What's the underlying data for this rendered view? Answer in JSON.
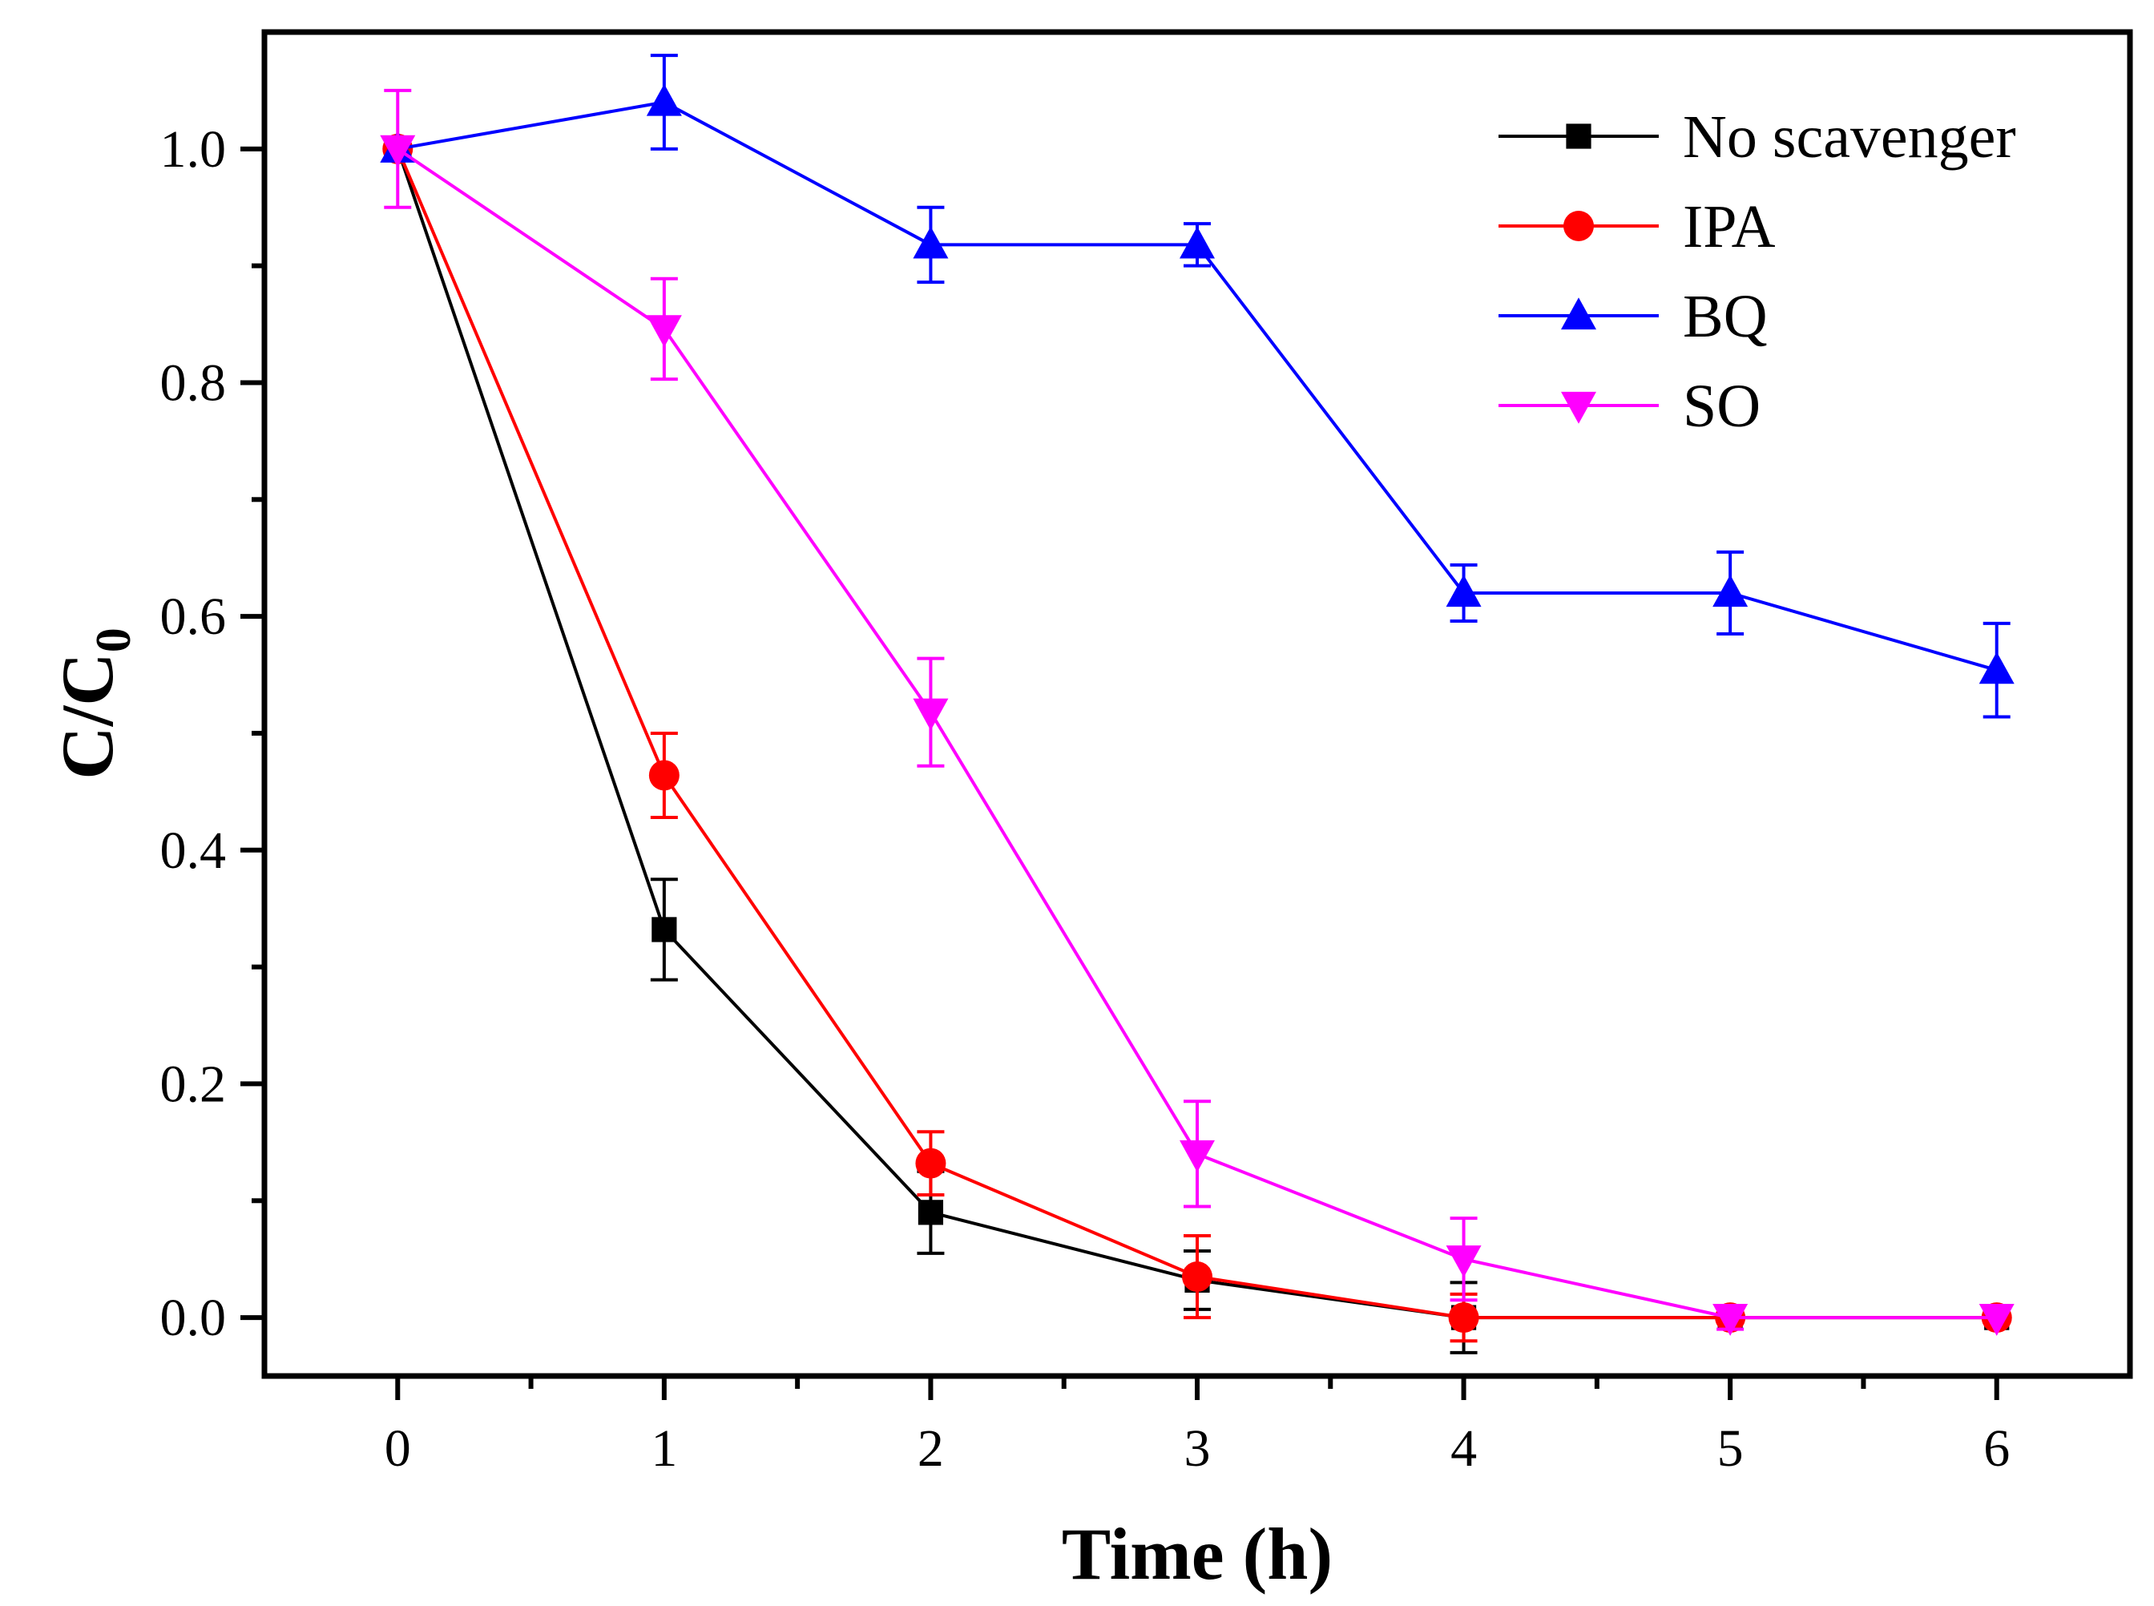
{
  "chart_data": {
    "type": "line",
    "title": "",
    "xlabel": "Time (h)",
    "ylabel_main": "C/C",
    "ylabel_sub": "0",
    "xlim": [
      -0.5,
      6.5
    ],
    "ylim": [
      -0.05,
      1.1
    ],
    "x_ticks": [
      0,
      1,
      2,
      3,
      4,
      5,
      6
    ],
    "x_tick_labels": [
      "0",
      "1",
      "2",
      "3",
      "4",
      "5",
      "6"
    ],
    "y_ticks": [
      0.0,
      0.2,
      0.4,
      0.6,
      0.8,
      1.0
    ],
    "y_tick_labels": [
      "0.0",
      "0.2",
      "0.4",
      "0.6",
      "0.8",
      "1.0"
    ],
    "x": [
      0,
      1,
      2,
      3,
      4,
      5,
      6
    ],
    "legend_position": "top-right",
    "grid": false,
    "series": [
      {
        "name": "No scavenger",
        "color": "#000000",
        "marker": "square",
        "values": [
          1.0,
          0.332,
          0.09,
          0.032,
          0.0,
          0.0,
          0.0
        ],
        "errors": [
          0.0,
          0.043,
          0.035,
          0.025,
          0.03,
          0.0,
          0.0
        ]
      },
      {
        "name": "IPA",
        "color": "#ff0000",
        "marker": "circle",
        "values": [
          1.0,
          0.464,
          0.132,
          0.035,
          0.0,
          0.0,
          0.0
        ],
        "errors": [
          0.0,
          0.036,
          0.027,
          0.035,
          0.02,
          0.0,
          0.0
        ]
      },
      {
        "name": "BQ",
        "color": "#0000ff",
        "marker": "triangle-up",
        "values": [
          1.0,
          1.04,
          0.918,
          0.918,
          0.62,
          0.62,
          0.554
        ],
        "errors": [
          0.0,
          0.04,
          0.032,
          0.018,
          0.024,
          0.035,
          0.04
        ]
      },
      {
        "name": "SO",
        "color": "#ff00ff",
        "marker": "triangle-down",
        "values": [
          1.0,
          0.846,
          0.518,
          0.14,
          0.05,
          0.0,
          0.0
        ],
        "errors": [
          0.05,
          0.043,
          0.046,
          0.045,
          0.035,
          0.01,
          0.0
        ]
      }
    ]
  }
}
